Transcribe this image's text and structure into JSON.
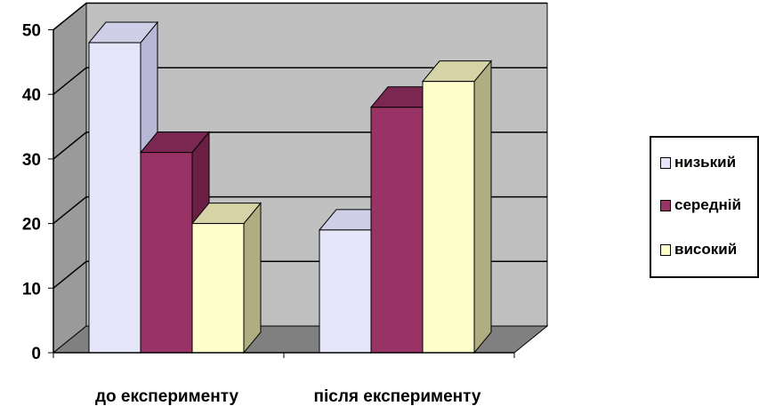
{
  "chart_data": {
    "type": "bar",
    "style": "3d-clustered",
    "categories": [
      "до експерименту",
      "після експерименту"
    ],
    "series": [
      {
        "name": "низький",
        "values": [
          48,
          19
        ],
        "color": "#e6e6fa",
        "side_color": "#b8b8d6",
        "top_color": "#cfcfe8"
      },
      {
        "name": "середній",
        "values": [
          31,
          38
        ],
        "color": "#993366",
        "side_color": "#6b1f45",
        "top_color": "#7a2752"
      },
      {
        "name": "високий",
        "values": [
          20,
          42
        ],
        "color": "#ffffcc",
        "side_color": "#b0ad82",
        "top_color": "#d6d4a6"
      }
    ],
    "yticks": [
      "0",
      "10",
      "20",
      "30",
      "40",
      "50"
    ],
    "ylim": [
      0,
      50
    ],
    "grid": true,
    "legend_position": "right",
    "wall_color": "#c0c0c0",
    "floor_color": "#808080"
  }
}
